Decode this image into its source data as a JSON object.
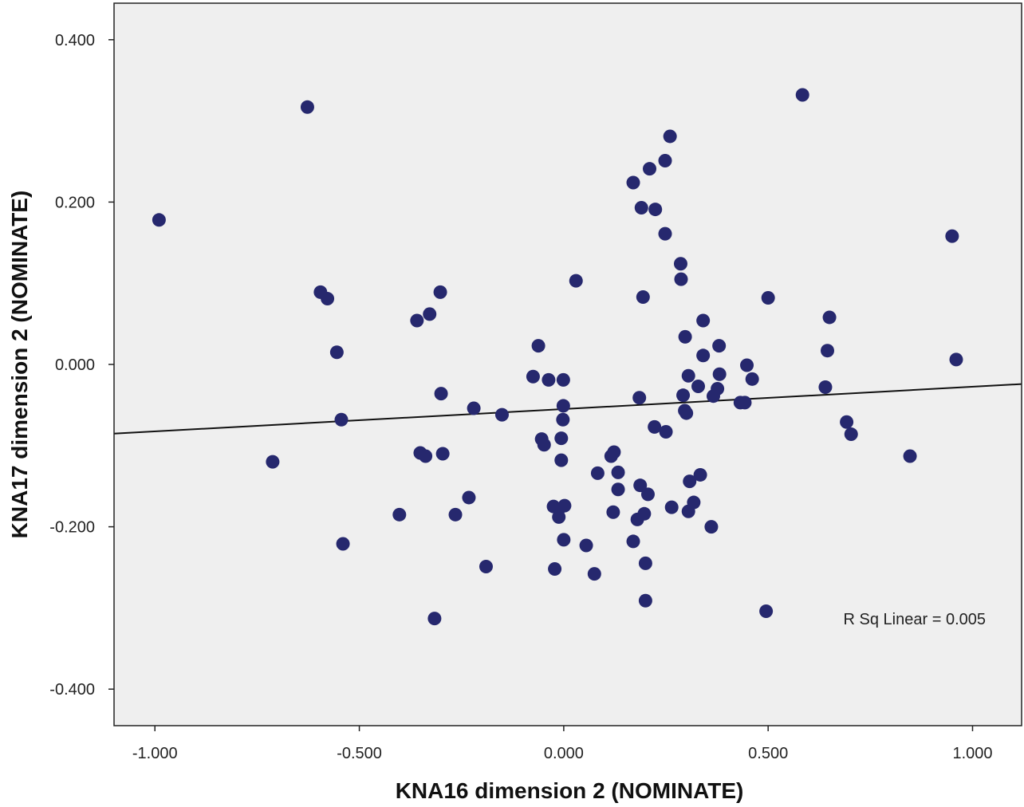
{
  "chart_data": {
    "type": "scatter",
    "xlabel": "KNA16 dimension 2 (NOMINATE)",
    "ylabel": "KNA17 dimension 2 (NOMINATE)",
    "xlim": [
      -1.1,
      1.12
    ],
    "ylim": [
      -0.445,
      0.445
    ],
    "xticks": [
      -1.0,
      -0.5,
      0.0,
      0.5,
      1.0
    ],
    "yticks": [
      -0.4,
      -0.2,
      0.0,
      0.2,
      0.4
    ],
    "xtick_labels": [
      "-1.000",
      "-0.500",
      "0.000",
      "0.500",
      "1.000"
    ],
    "ytick_labels": [
      "-0.400",
      "-0.200",
      "0.000",
      "0.200",
      "0.400"
    ],
    "grid": false,
    "background": "#efefef",
    "marker_color": "#26286e",
    "line_color": "#111111",
    "fit_line": {
      "intercept": -0.055,
      "slope": 0.0275
    },
    "annotation": "R Sq Linear = 0.005",
    "points": [
      {
        "x": -0.99,
        "y": 0.178
      },
      {
        "x": -0.627,
        "y": 0.317
      },
      {
        "x": -0.595,
        "y": 0.089
      },
      {
        "x": -0.578,
        "y": 0.081
      },
      {
        "x": -0.555,
        "y": 0.015
      },
      {
        "x": -0.544,
        "y": -0.068
      },
      {
        "x": -0.54,
        "y": -0.221
      },
      {
        "x": -0.712,
        "y": -0.12
      },
      {
        "x": -0.402,
        "y": -0.185
      },
      {
        "x": -0.359,
        "y": 0.054
      },
      {
        "x": -0.328,
        "y": 0.062
      },
      {
        "x": -0.351,
        "y": -0.109
      },
      {
        "x": -0.338,
        "y": -0.113
      },
      {
        "x": -0.302,
        "y": 0.089
      },
      {
        "x": -0.3,
        "y": -0.036
      },
      {
        "x": -0.296,
        "y": -0.11
      },
      {
        "x": -0.316,
        "y": -0.313
      },
      {
        "x": -0.265,
        "y": -0.185
      },
      {
        "x": -0.232,
        "y": -0.164
      },
      {
        "x": -0.22,
        "y": -0.054
      },
      {
        "x": -0.19,
        "y": -0.249
      },
      {
        "x": -0.151,
        "y": -0.062
      },
      {
        "x": -0.075,
        "y": -0.015
      },
      {
        "x": -0.062,
        "y": 0.023
      },
      {
        "x": -0.054,
        "y": -0.092
      },
      {
        "x": -0.048,
        "y": -0.099
      },
      {
        "x": -0.037,
        "y": -0.019
      },
      {
        "x": -0.025,
        "y": -0.175
      },
      {
        "x": -0.022,
        "y": -0.252
      },
      {
        "x": -0.012,
        "y": -0.178
      },
      {
        "x": -0.012,
        "y": -0.188
      },
      {
        "x": -0.006,
        "y": -0.118
      },
      {
        "x": -0.006,
        "y": -0.091
      },
      {
        "x": -0.002,
        "y": -0.068
      },
      {
        "x": -0.001,
        "y": -0.051
      },
      {
        "x": -0.001,
        "y": -0.019
      },
      {
        "x": 0.0,
        "y": -0.216
      },
      {
        "x": 0.002,
        "y": -0.174
      },
      {
        "x": 0.03,
        "y": 0.103
      },
      {
        "x": 0.055,
        "y": -0.223
      },
      {
        "x": 0.075,
        "y": -0.258
      },
      {
        "x": 0.083,
        "y": -0.134
      },
      {
        "x": 0.116,
        "y": -0.113
      },
      {
        "x": 0.123,
        "y": -0.108
      },
      {
        "x": 0.121,
        "y": -0.182
      },
      {
        "x": 0.133,
        "y": -0.133
      },
      {
        "x": 0.133,
        "y": -0.154
      },
      {
        "x": 0.17,
        "y": 0.224
      },
      {
        "x": 0.17,
        "y": -0.218
      },
      {
        "x": 0.18,
        "y": -0.191
      },
      {
        "x": 0.185,
        "y": -0.041
      },
      {
        "x": 0.187,
        "y": -0.149
      },
      {
        "x": 0.19,
        "y": 0.193
      },
      {
        "x": 0.194,
        "y": 0.083
      },
      {
        "x": 0.197,
        "y": -0.184
      },
      {
        "x": 0.2,
        "y": -0.245
      },
      {
        "x": 0.2,
        "y": -0.291
      },
      {
        "x": 0.206,
        "y": -0.16
      },
      {
        "x": 0.21,
        "y": 0.241
      },
      {
        "x": 0.224,
        "y": 0.191
      },
      {
        "x": 0.222,
        "y": -0.077
      },
      {
        "x": 0.248,
        "y": 0.251
      },
      {
        "x": 0.248,
        "y": 0.161
      },
      {
        "x": 0.25,
        "y": -0.083
      },
      {
        "x": 0.26,
        "y": 0.281
      },
      {
        "x": 0.264,
        "y": -0.176
      },
      {
        "x": 0.286,
        "y": 0.124
      },
      {
        "x": 0.287,
        "y": 0.105
      },
      {
        "x": 0.292,
        "y": -0.038
      },
      {
        "x": 0.296,
        "y": -0.057
      },
      {
        "x": 0.297,
        "y": 0.034
      },
      {
        "x": 0.3,
        "y": -0.06
      },
      {
        "x": 0.305,
        "y": -0.014
      },
      {
        "x": 0.305,
        "y": -0.181
      },
      {
        "x": 0.308,
        "y": -0.144
      },
      {
        "x": 0.318,
        "y": -0.17
      },
      {
        "x": 0.329,
        "y": -0.027
      },
      {
        "x": 0.334,
        "y": -0.136
      },
      {
        "x": 0.341,
        "y": 0.054
      },
      {
        "x": 0.341,
        "y": 0.011
      },
      {
        "x": 0.361,
        "y": -0.2
      },
      {
        "x": 0.366,
        "y": -0.039
      },
      {
        "x": 0.376,
        "y": -0.03
      },
      {
        "x": 0.38,
        "y": 0.023
      },
      {
        "x": 0.381,
        "y": -0.012
      },
      {
        "x": 0.432,
        "y": -0.047
      },
      {
        "x": 0.443,
        "y": -0.047
      },
      {
        "x": 0.448,
        "y": -0.001
      },
      {
        "x": 0.461,
        "y": -0.018
      },
      {
        "x": 0.495,
        "y": -0.304
      },
      {
        "x": 0.5,
        "y": 0.082
      },
      {
        "x": 0.584,
        "y": 0.332
      },
      {
        "x": 0.64,
        "y": -0.028
      },
      {
        "x": 0.645,
        "y": 0.017
      },
      {
        "x": 0.65,
        "y": 0.058
      },
      {
        "x": 0.692,
        "y": -0.071
      },
      {
        "x": 0.703,
        "y": -0.086
      },
      {
        "x": 0.847,
        "y": -0.113
      },
      {
        "x": 0.95,
        "y": 0.158
      },
      {
        "x": 0.96,
        "y": 0.006
      }
    ]
  }
}
